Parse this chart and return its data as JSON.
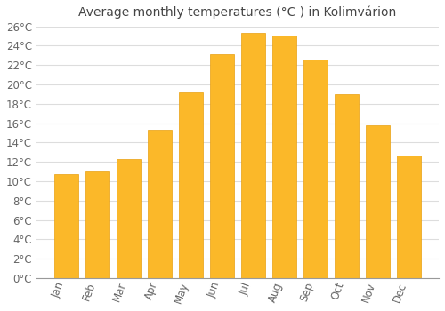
{
  "title": "Average monthly temperatures (°C ) in Kolimvárion",
  "months": [
    "Jan",
    "Feb",
    "Mar",
    "Apr",
    "May",
    "Jun",
    "Jul",
    "Aug",
    "Sep",
    "Oct",
    "Nov",
    "Dec"
  ],
  "values": [
    10.7,
    11.0,
    12.3,
    15.3,
    19.2,
    23.1,
    25.3,
    25.0,
    22.6,
    19.0,
    15.8,
    12.7
  ],
  "bar_color": "#FBB829",
  "bar_edge_color": "#E8A010",
  "bar_light_color": "#FCCA55",
  "background_color": "#FFFFFF",
  "grid_color": "#DDDDDD",
  "title_color": "#444444",
  "tick_label_color": "#666666",
  "axis_color": "#999999",
  "ylim": [
    0,
    26
  ],
  "ytick_step": 2,
  "title_fontsize": 10,
  "tick_fontsize": 8.5
}
